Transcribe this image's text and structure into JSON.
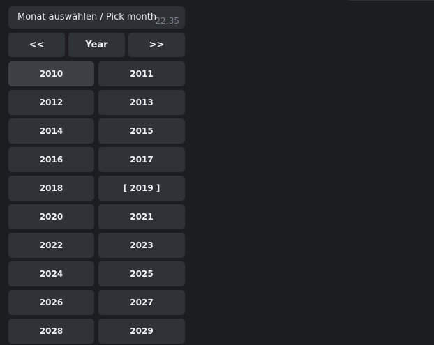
{
  "message": {
    "text": "Monat auswählen / Pick month",
    "time": "22:35"
  },
  "nav": {
    "prev": "<<",
    "center": "Year",
    "next": ">>"
  },
  "years": [
    "2010",
    "2011",
    "2012",
    "2013",
    "2014",
    "2015",
    "2016",
    "2017",
    "2018",
    "[ 2019 ]",
    "2020",
    "2021",
    "2022",
    "2023",
    "2024",
    "2025",
    "2026",
    "2027",
    "2028",
    "2029"
  ],
  "highlighted": "2010"
}
